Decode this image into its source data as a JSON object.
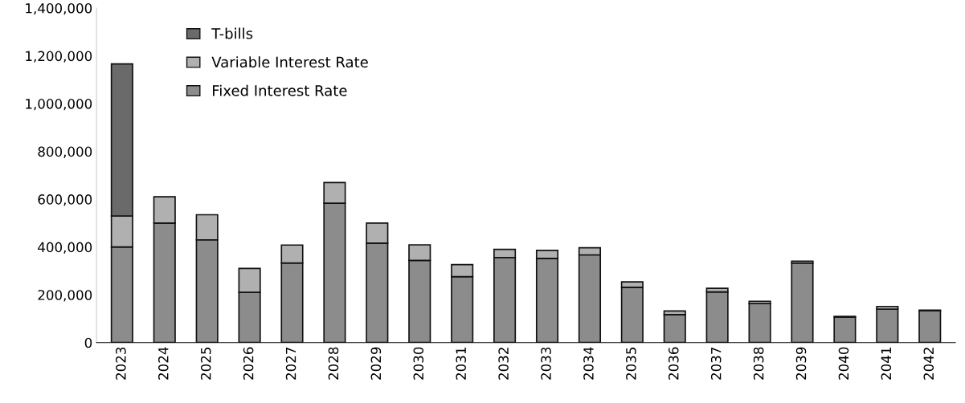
{
  "chart_data": {
    "type": "bar",
    "stacked": true,
    "categories": [
      "2023",
      "2024",
      "2025",
      "2026",
      "2027",
      "2028",
      "2029",
      "2030",
      "2031",
      "2032",
      "2033",
      "2034",
      "2035",
      "2036",
      "2037",
      "2038",
      "2039",
      "2040",
      "2041",
      "2042"
    ],
    "series": [
      {
        "name": "Fixed Interest Rate",
        "color": "#8c8c8c",
        "values": [
          400000,
          500000,
          430000,
          210000,
          333000,
          583000,
          416000,
          344000,
          276000,
          356000,
          352000,
          367000,
          231000,
          117000,
          212000,
          163000,
          333000,
          107000,
          140000,
          134000
        ]
      },
      {
        "name": "Variable Interest Rate",
        "color": "#b0b0b0",
        "values": [
          130000,
          110000,
          105000,
          100000,
          75000,
          87000,
          84000,
          65000,
          50000,
          34000,
          34000,
          30000,
          23000,
          15000,
          15000,
          10000,
          8000,
          3000,
          11000,
          2000
        ]
      },
      {
        "name": "T-bills",
        "color": "#6a6a6a",
        "values": [
          636000,
          null,
          null,
          null,
          null,
          null,
          null,
          null,
          null,
          null,
          null,
          null,
          null,
          null,
          null,
          null,
          null,
          null,
          null,
          null
        ]
      }
    ],
    "ylim": [
      0,
      1400000
    ],
    "yticks": [
      {
        "value": 0,
        "label": "0"
      },
      {
        "value": 200000,
        "label": "200,000"
      },
      {
        "value": 400000,
        "label": "400,000"
      },
      {
        "value": 600000,
        "label": "600,000"
      },
      {
        "value": 800000,
        "label": "800,000"
      },
      {
        "value": 1000000,
        "label": "1,000,000"
      },
      {
        "value": 1200000,
        "label": "1,200,000"
      },
      {
        "value": 1400000,
        "label": "1,400,000"
      }
    ],
    "grid": false,
    "legend": "top left"
  }
}
